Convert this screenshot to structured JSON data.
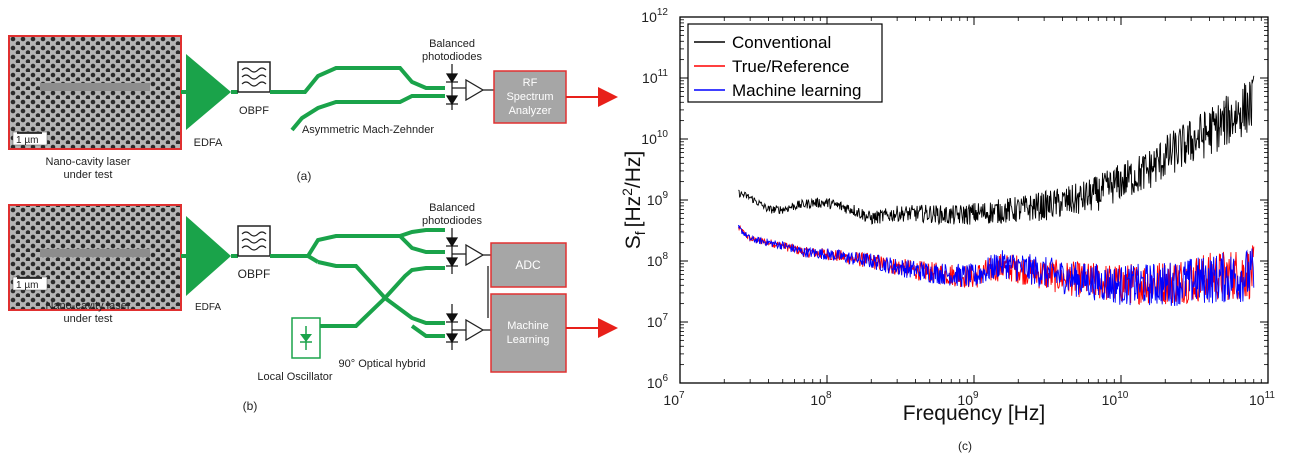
{
  "panel_a": {
    "sem_scale": "1 µm",
    "laser_label_1": "Nano-cavity laser",
    "laser_label_2": "under test",
    "edfa": "EDFA",
    "obpf": "OBPF",
    "mzi": "Asymmetric Mach-Zehnder",
    "bpd_1": "Balanced",
    "bpd_2": "photodiodes",
    "rf_1": "RF",
    "rf_2": "Spectrum",
    "rf_3": "Analyzer",
    "caption": "(a)"
  },
  "panel_b": {
    "sem_scale": "1 µm",
    "laser_label_1": "Nano-cavity laser",
    "laser_label_2": "under test",
    "edfa": "EDFA",
    "obpf": "OBPF",
    "bpd_1": "Balanced",
    "bpd_2": "photodiodes",
    "adc": "ADC",
    "ml_1": "Machine",
    "ml_2": "Learning",
    "hybrid": "90° Optical hybrid",
    "lo": "Local Oscillator",
    "caption": "(b)"
  },
  "colors": {
    "component_green": "#1aa34a",
    "box_gray": "#a6a6a6",
    "box_border_red": "#e03030",
    "arrow_red": "#e8201a",
    "series_conventional": "#000000",
    "series_reference": "#ff0000",
    "series_ml": "#0000ff"
  },
  "chart_data": {
    "type": "line",
    "xlabel": "Frequency [Hz]",
    "ylabel_main": "S",
    "ylabel_sub": "f",
    "ylabel_rest": "[Hz",
    "ylabel_sup": "2",
    "ylabel_end": "/Hz]",
    "x_scale": "log",
    "y_scale": "log",
    "xlim": [
      10000000.0,
      100000000000.0
    ],
    "ylim": [
      1000000.0,
      1000000000000.0
    ],
    "x_ticks": [
      {
        "value": 10000000.0,
        "base": "10",
        "exp": "7"
      },
      {
        "value": 100000000.0,
        "base": "10",
        "exp": "8"
      },
      {
        "value": 1000000000.0,
        "base": "10",
        "exp": "9"
      },
      {
        "value": 10000000000.0,
        "base": "10",
        "exp": "10"
      },
      {
        "value": 100000000000.0,
        "base": "10",
        "exp": "11"
      }
    ],
    "y_ticks": [
      {
        "value": 1000000.0,
        "base": "10",
        "exp": "6"
      },
      {
        "value": 10000000.0,
        "base": "10",
        "exp": "7"
      },
      {
        "value": 100000000.0,
        "base": "10",
        "exp": "8"
      },
      {
        "value": 1000000000.0,
        "base": "10",
        "exp": "9"
      },
      {
        "value": 10000000000.0,
        "base": "10",
        "exp": "10"
      },
      {
        "value": 100000000000.0,
        "base": "10",
        "exp": "11"
      },
      {
        "value": 1000000000000.0,
        "base": "10",
        "exp": "12"
      }
    ],
    "legend_position": "top-left",
    "caption": "(c)",
    "series": [
      {
        "name": "Conventional",
        "color": "#000000",
        "x": [
          25000000.0,
          30000000.0,
          40000000.0,
          50000000.0,
          60000000.0,
          80000000.0,
          100000000.0,
          150000000.0,
          200000000.0,
          300000000.0,
          500000000.0,
          700000000.0,
          1000000000.0,
          1500000000.0,
          2000000000.0,
          3000000000.0,
          5000000000.0,
          7000000000.0,
          10000000000.0,
          15000000000.0,
          20000000000.0,
          30000000000.0,
          50000000000.0,
          80000000000.0
        ],
        "y": [
          1300000000.0,
          1100000000.0,
          700000000.0,
          700000000.0,
          800000000.0,
          900000000.0,
          900000000.0,
          700000000.0,
          500000000.0,
          600000000.0,
          600000000.0,
          550000000.0,
          600000000.0,
          650000000.0,
          700000000.0,
          800000000.0,
          1000000000.0,
          1300000000.0,
          2000000000.0,
          3000000000.0,
          5000000000.0,
          9000000000.0,
          18000000000.0,
          40000000000.0
        ]
      },
      {
        "name": "True/Reference",
        "color": "#ff0000",
        "x": [
          25000000.0,
          30000000.0,
          50000000.0,
          70000000.0,
          100000000.0,
          150000000.0,
          200000000.0,
          300000000.0,
          500000000.0,
          1000000000.0,
          1500000000.0,
          2000000000.0,
          3000000000.0,
          5000000000.0,
          10000000000.0,
          20000000000.0,
          40000000000.0,
          80000000000.0
        ],
        "y": [
          350000000.0,
          230000000.0,
          180000000.0,
          140000000.0,
          130000000.0,
          110000000.0,
          100000000.0,
          80000000.0,
          65000000.0,
          55000000.0,
          80000000.0,
          75000000.0,
          60000000.0,
          50000000.0,
          42000000.0,
          45000000.0,
          55000000.0,
          65000000.0
        ]
      },
      {
        "name": "Machine learning",
        "color": "#0000ff",
        "x": [
          25000000.0,
          30000000.0,
          50000000.0,
          70000000.0,
          100000000.0,
          150000000.0,
          200000000.0,
          300000000.0,
          500000000.0,
          1000000000.0,
          1500000000.0,
          2000000000.0,
          3000000000.0,
          5000000000.0,
          10000000000.0,
          20000000000.0,
          40000000000.0,
          80000000000.0
        ],
        "y": [
          350000000.0,
          230000000.0,
          180000000.0,
          140000000.0,
          130000000.0,
          110000000.0,
          100000000.0,
          80000000.0,
          65000000.0,
          55000000.0,
          90000000.0,
          80000000.0,
          65000000.0,
          50000000.0,
          40000000.0,
          42000000.0,
          50000000.0,
          60000000.0
        ]
      }
    ]
  }
}
